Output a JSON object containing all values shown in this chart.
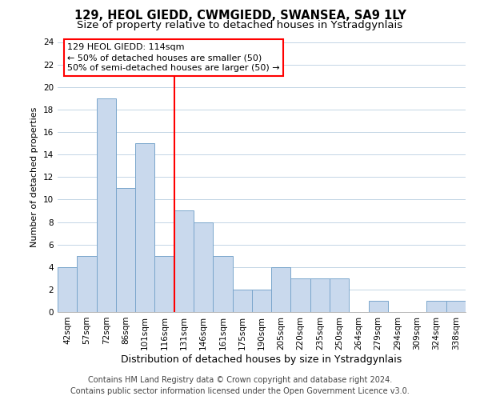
{
  "title": "129, HEOL GIEDD, CWMGIEDD, SWANSEA, SA9 1LY",
  "subtitle": "Size of property relative to detached houses in Ystradgynlais",
  "xlabel": "Distribution of detached houses by size in Ystradgynlais",
  "ylabel": "Number of detached properties",
  "bar_labels": [
    "42sqm",
    "57sqm",
    "72sqm",
    "86sqm",
    "101sqm",
    "116sqm",
    "131sqm",
    "146sqm",
    "161sqm",
    "175sqm",
    "190sqm",
    "205sqm",
    "220sqm",
    "235sqm",
    "250sqm",
    "264sqm",
    "279sqm",
    "294sqm",
    "309sqm",
    "324sqm",
    "338sqm"
  ],
  "bar_values": [
    4,
    5,
    19,
    11,
    15,
    5,
    9,
    8,
    5,
    2,
    2,
    4,
    3,
    3,
    3,
    0,
    1,
    0,
    0,
    1,
    1
  ],
  "bar_color": "#c9d9ed",
  "bar_edge_color": "#7aa6cc",
  "vline_x_index": 5,
  "vline_color": "red",
  "annotation_title": "129 HEOL GIEDD: 114sqm",
  "annotation_line1": "← 50% of detached houses are smaller (50)",
  "annotation_line2": "50% of semi-detached houses are larger (50) →",
  "annotation_box_color": "white",
  "annotation_box_edge": "red",
  "ylim": [
    0,
    24
  ],
  "yticks": [
    0,
    2,
    4,
    6,
    8,
    10,
    12,
    14,
    16,
    18,
    20,
    22,
    24
  ],
  "footer1": "Contains HM Land Registry data © Crown copyright and database right 2024.",
  "footer2": "Contains public sector information licensed under the Open Government Licence v3.0.",
  "title_fontsize": 10.5,
  "subtitle_fontsize": 9.5,
  "xlabel_fontsize": 9,
  "ylabel_fontsize": 8,
  "tick_fontsize": 7.5,
  "footer_fontsize": 7,
  "ann_fontsize": 8
}
